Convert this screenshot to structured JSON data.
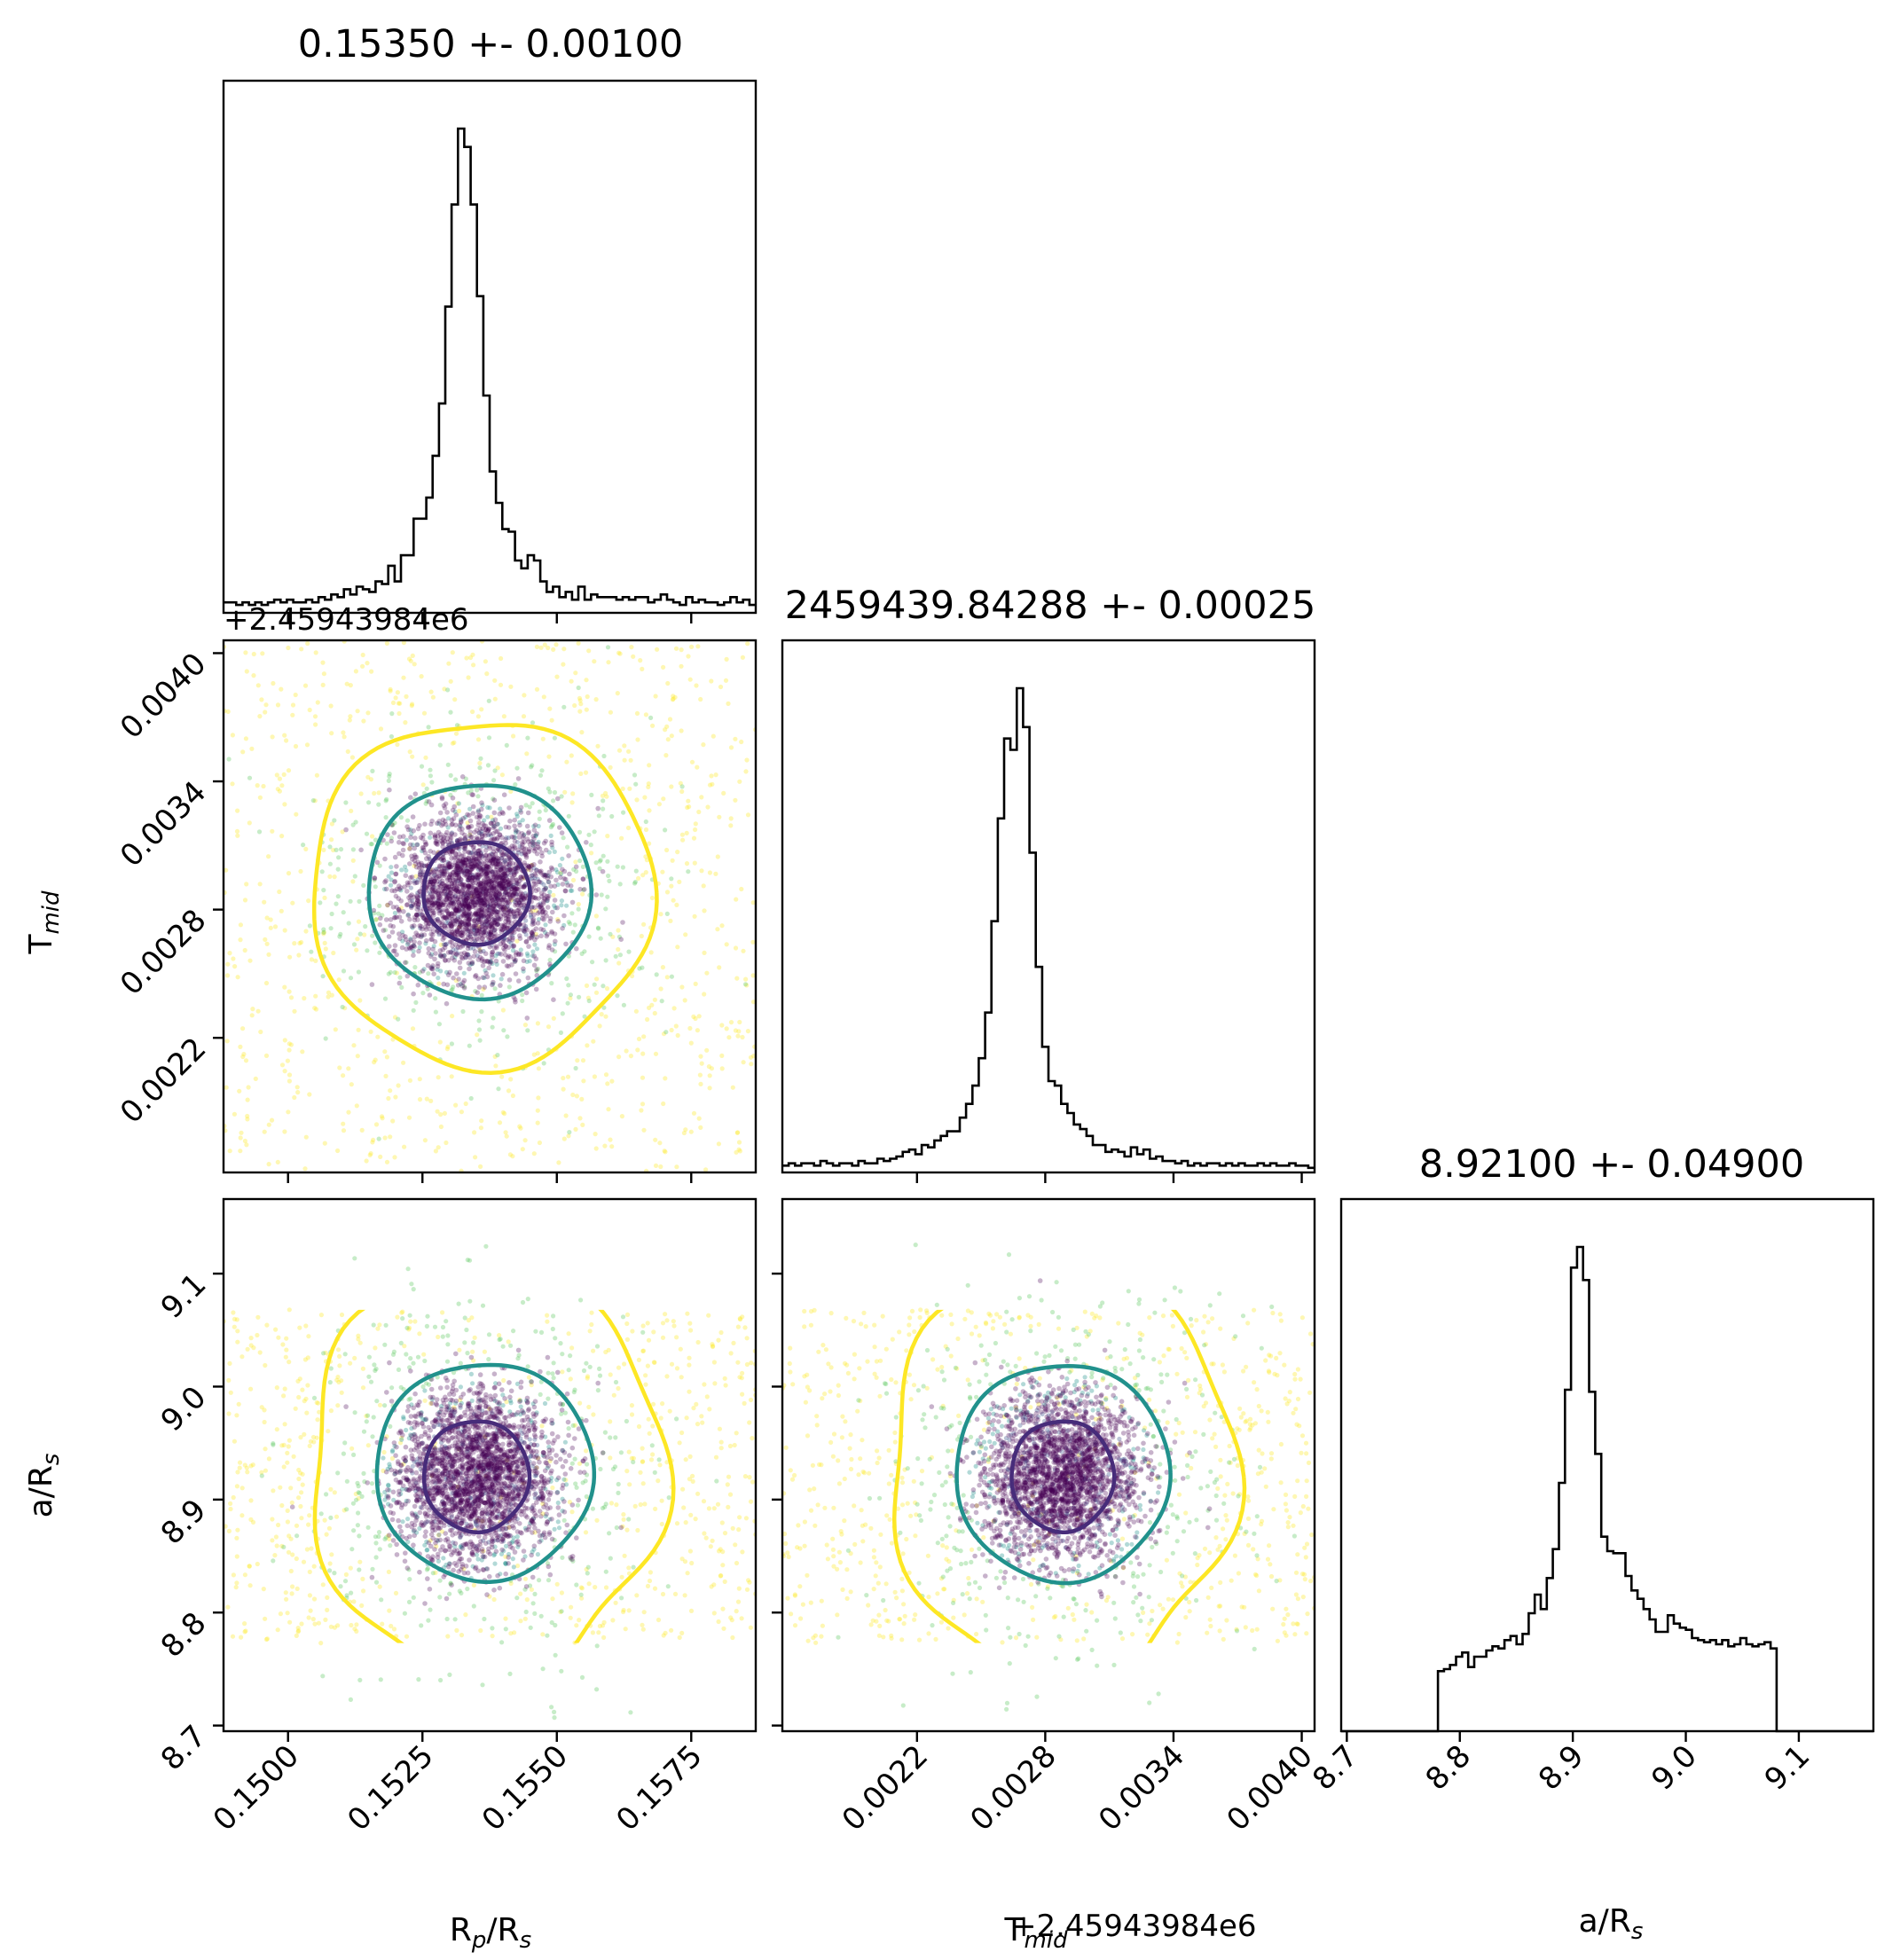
{
  "chart_data": {
    "type": "scatter",
    "subtype": "corner-plot",
    "parameters": [
      "R_p/R_s",
      "T_mid",
      "a/R_s"
    ],
    "medians": [
      0.1535,
      2459439.84288,
      8.921
    ],
    "titles": [
      "0.15350 +- 0.00100",
      "2459439.84288 +- 0.00025",
      "8.92100 +- 0.04900"
    ],
    "axis_labels": {
      "rp": {
        "main": "R",
        "sub1": "p",
        "mid": "/R",
        "sub2": "s"
      },
      "tmid": {
        "main": "T",
        "sub": "mid"
      },
      "ars": {
        "main": "a/R",
        "sub": "s"
      }
    },
    "offset_text": "+2.45943984e6",
    "x_offset_text": "+2.45943984e6",
    "ranges": {
      "rp": [
        0.1488,
        0.1587
      ],
      "tmid": [
        0.00157,
        0.00406
      ],
      "ars": [
        8.695,
        9.166
      ]
    },
    "ticks": {
      "rp": [
        "0.1500",
        "0.1525",
        "0.1550",
        "0.1575"
      ],
      "tmid": [
        "0.0022",
        "0.0028",
        "0.0034",
        "0.0040"
      ],
      "ars": [
        "8.7",
        "8.8",
        "8.9",
        "9.0",
        "9.1"
      ]
    },
    "tick_values": {
      "rp": [
        0.15,
        0.1525,
        0.155,
        0.1575
      ],
      "tmid": [
        0.0022,
        0.0028,
        0.0034,
        0.004
      ],
      "ars": [
        8.7,
        8.8,
        8.9,
        9.0,
        9.1
      ]
    },
    "histograms": {
      "rp": {
        "x_range": [
          0.1488,
          0.1587
        ],
        "counts": [
          4,
          4,
          3,
          4,
          3,
          4,
          3,
          4,
          5,
          4,
          5,
          4,
          4,
          5,
          4,
          6,
          5,
          7,
          6,
          9,
          7,
          10,
          9,
          8,
          12,
          11,
          18,
          12,
          22,
          22,
          36,
          36,
          44,
          60,
          80,
          117,
          156,
          185,
          178,
          156,
          121,
          83,
          54,
          42,
          32,
          31,
          20,
          17,
          22,
          20,
          12,
          8,
          10,
          6,
          8,
          5,
          10,
          5,
          7,
          6,
          6,
          6,
          5,
          6,
          5,
          6,
          6,
          4,
          5,
          7,
          5,
          4,
          3,
          6,
          4,
          5,
          4,
          4,
          3,
          4,
          6,
          4,
          5,
          3
        ],
        "bins_start_index": 0
      },
      "tmid": {
        "x_range": [
          0.00157,
          0.00406
        ],
        "counts": [
          3,
          4,
          3,
          4,
          4,
          3,
          5,
          4,
          3,
          4,
          4,
          3,
          5,
          4,
          4,
          6,
          5,
          6,
          7,
          9,
          10,
          8,
          12,
          11,
          14,
          16,
          18,
          18,
          24,
          30,
          38,
          50,
          70,
          110,
          155,
          190,
          185,
          212,
          195,
          140,
          90,
          55,
          40,
          38,
          30,
          26,
          21,
          19,
          16,
          12,
          12,
          9,
          10,
          9,
          7,
          11,
          8,
          10,
          6,
          7,
          5,
          5,
          4,
          5,
          3,
          4,
          3,
          4,
          4,
          3,
          4,
          3,
          4,
          3,
          3,
          4,
          3,
          4,
          3,
          3,
          4,
          3,
          3,
          2
        ],
        "bins_start_index": 0
      },
      "ars": {
        "x_range": [
          8.695,
          9.166
        ],
        "counts": [
          0,
          0,
          0,
          0,
          0,
          0,
          0,
          0,
          0,
          0,
          0,
          0,
          0,
          0,
          0,
          0,
          29,
          30,
          32,
          36,
          38,
          31,
          36,
          36,
          39,
          41,
          40,
          44,
          46,
          42,
          47,
          57,
          66,
          59,
          74,
          88,
          120,
          165,
          224,
          234,
          218,
          164,
          134,
          94,
          87,
          86,
          86,
          75,
          68,
          64,
          59,
          54,
          48,
          48,
          56,
          52,
          50,
          49,
          45,
          44,
          43,
          44,
          42,
          44,
          41,
          42,
          45,
          42,
          41,
          42,
          43,
          40,
          0,
          0,
          0,
          0,
          0,
          0,
          0,
          0,
          0,
          0,
          0,
          0,
          0,
          0,
          0,
          0
        ],
        "bins_start_index": 0
      }
    },
    "contours": {
      "rp_tmid": [
        {
          "level": "inner",
          "color": "#472c7a",
          "center": [
            0.1535,
            0.00288
          ],
          "radii": [
            0.00099,
            0.00024
          ]
        },
        {
          "level": "middle",
          "color": "#21918c",
          "center": [
            0.15355,
            0.00289
          ],
          "radii": [
            0.00207,
            0.0005
          ]
        },
        {
          "level": "outer",
          "color": "#fde725",
          "center": [
            0.1536,
            0.00288
          ],
          "radii": [
            0.00318,
            0.00081
          ]
        }
      ],
      "rp_ars": [
        {
          "level": "inner",
          "color": "#472c7a",
          "center": [
            0.1535,
            8.921
          ],
          "radii": [
            0.00098,
            0.049
          ]
        },
        {
          "level": "middle",
          "color": "#21918c",
          "center": [
            0.15365,
            8.925
          ],
          "radii": [
            0.00202,
            0.096
          ]
        },
        {
          "level": "outer",
          "color": "#fde725",
          "center": [
            0.1537,
            8.92
          ],
          "radii": [
            0.0033,
            0.18
          ]
        }
      ],
      "tmid_ars": [
        {
          "level": "inner",
          "color": "#472c7a",
          "center": [
            0.00288,
            8.921
          ],
          "radii": [
            0.00024,
            0.049
          ]
        },
        {
          "level": "middle",
          "color": "#21918c",
          "center": [
            0.00288,
            8.924
          ],
          "radii": [
            0.0005,
            0.096
          ]
        },
        {
          "level": "outer",
          "color": "#fde725",
          "center": [
            0.00288,
            8.92
          ],
          "radii": [
            0.00081,
            0.18
          ]
        }
      ]
    },
    "scatter_colors": {
      "core": "#440154",
      "mid": "#21918c",
      "outer": "#fde725"
    },
    "grid": false,
    "legend": "none"
  }
}
